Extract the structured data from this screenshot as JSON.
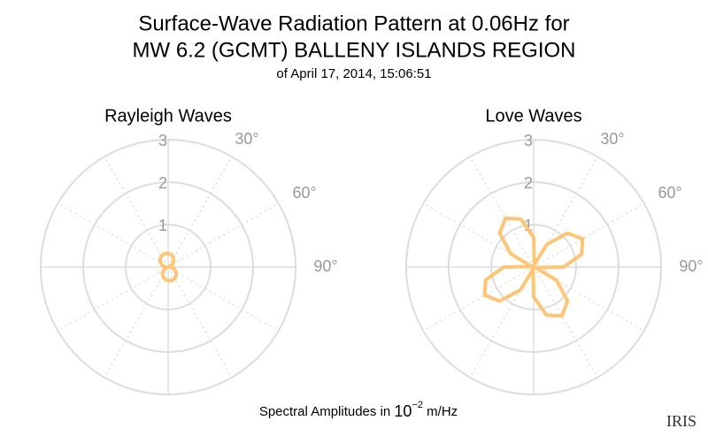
{
  "title": [
    "Surface-Wave Radiation Pattern at 0.06Hz for",
    "MW 6.2 (GCMT) BALLENY ISLANDS REGION"
  ],
  "subtitle": "of April 17, 2014, 15:06:51",
  "footnote": [
    "Spectral Amplitudes in ",
    "10",
    "−2",
    " m/Hz"
  ],
  "logo": "IRIS",
  "chart_data": [
    {
      "type": "polar",
      "title": "Rayleigh Waves",
      "color": "#fdc576",
      "theta": [
        0,
        15,
        30,
        45,
        60,
        75,
        90,
        105,
        120,
        135,
        150,
        165,
        180,
        195,
        210,
        225,
        240,
        255,
        270,
        285,
        300,
        315,
        330,
        345
      ],
      "values": [
        0.32,
        0.3,
        0.25,
        0.19,
        0.11,
        0.03,
        0.06,
        0.14,
        0.21,
        0.27,
        0.31,
        0.33,
        0.32,
        0.3,
        0.25,
        0.19,
        0.11,
        0.03,
        0.06,
        0.14,
        0.21,
        0.27,
        0.31,
        0.33
      ],
      "rlim": [
        0,
        3
      ],
      "rticks": [
        1,
        2,
        3
      ],
      "thetaticks": [
        {
          "value": 30,
          "label": "30°"
        },
        {
          "value": 60,
          "label": "60°"
        },
        {
          "value": 90,
          "label": "90°"
        }
      ]
    },
    {
      "type": "polar",
      "title": "Love Waves",
      "color": "#fdc576",
      "theta": [
        0,
        15,
        30,
        45,
        60,
        75,
        90,
        105,
        120,
        135,
        150,
        165,
        180,
        195,
        210,
        225,
        240,
        255,
        270,
        285,
        300,
        315,
        330,
        345
      ],
      "values": [
        0.7,
        0.05,
        0.62,
        1.13,
        1.33,
        1.17,
        0.7,
        0.05,
        0.62,
        1.13,
        1.33,
        1.17,
        0.7,
        0.05,
        0.62,
        1.13,
        1.33,
        1.17,
        0.7,
        0.05,
        0.62,
        1.13,
        1.33,
        1.17
      ],
      "rlim": [
        0,
        3
      ],
      "rticks": [
        1,
        2,
        3
      ],
      "thetaticks": [
        {
          "value": 30,
          "label": "30°"
        },
        {
          "value": 60,
          "label": "60°"
        },
        {
          "value": 90,
          "label": "90°"
        }
      ]
    }
  ]
}
